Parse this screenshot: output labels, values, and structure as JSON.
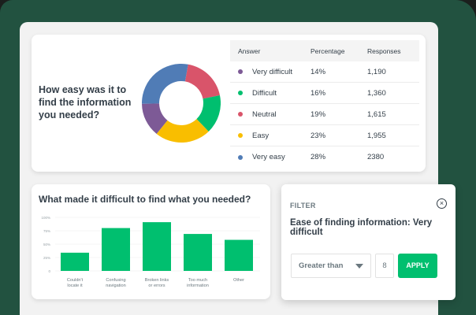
{
  "colors": {
    "background": "#225240",
    "accent": "#00bf6f",
    "very_difficult": "#7d5a96",
    "difficult": "#00bf6f",
    "neutral": "#d9546a",
    "easy": "#f9be00",
    "very_easy": "#507cb6"
  },
  "summary": {
    "question": "How easy was it to find the information you needed?",
    "table": {
      "headers": [
        "Answer",
        "Percentage",
        "Responses"
      ],
      "rows": [
        {
          "answer": "Very difficult",
          "percentage": "14%",
          "responses": "1,190",
          "color": "#7d5a96"
        },
        {
          "answer": "Difficult",
          "percentage": "16%",
          "responses": "1,360",
          "color": "#00bf6f"
        },
        {
          "answer": "Neutral",
          "percentage": "19%",
          "responses": "1,615",
          "color": "#d9546a"
        },
        {
          "answer": "Easy",
          "percentage": "23%",
          "responses": "1,955",
          "color": "#f9be00"
        },
        {
          "answer": "Very easy",
          "percentage": "28%",
          "responses": "2380",
          "color": "#507cb6"
        }
      ]
    }
  },
  "bar_card": {
    "title": "What made it difficult to find what you needed?"
  },
  "filter": {
    "label": "FILTER",
    "close_icon": "circle-x-icon",
    "title": "Ease of finding information: Very difficult",
    "comparator": "Greater than",
    "value": "8",
    "apply_label": "APPLY"
  },
  "chart_data": [
    {
      "type": "pie",
      "title": "How easy was it to find the information you needed?",
      "categories": [
        "Very difficult",
        "Difficult",
        "Neutral",
        "Easy",
        "Very easy"
      ],
      "values": [
        14,
        16,
        19,
        23,
        28
      ],
      "responses": [
        1190,
        1360,
        1615,
        1955,
        2380
      ],
      "colors": [
        "#7d5a96",
        "#00bf6f",
        "#d9546a",
        "#f9be00",
        "#507cb6"
      ],
      "donut": true
    },
    {
      "type": "bar",
      "title": "What made it difficult to find what you needed?",
      "categories": [
        "Couldn't locate it",
        "Confusing navigation",
        "Broken links or errors",
        "Too much information",
        "Other"
      ],
      "values": [
        34,
        80,
        91,
        69,
        58
      ],
      "yticks": [
        "0",
        "25%",
        "50%",
        "75%",
        "100%"
      ],
      "ylim": [
        0,
        100
      ],
      "xlabel": "",
      "ylabel": "",
      "grid": true,
      "color": "#00bf6f"
    }
  ]
}
